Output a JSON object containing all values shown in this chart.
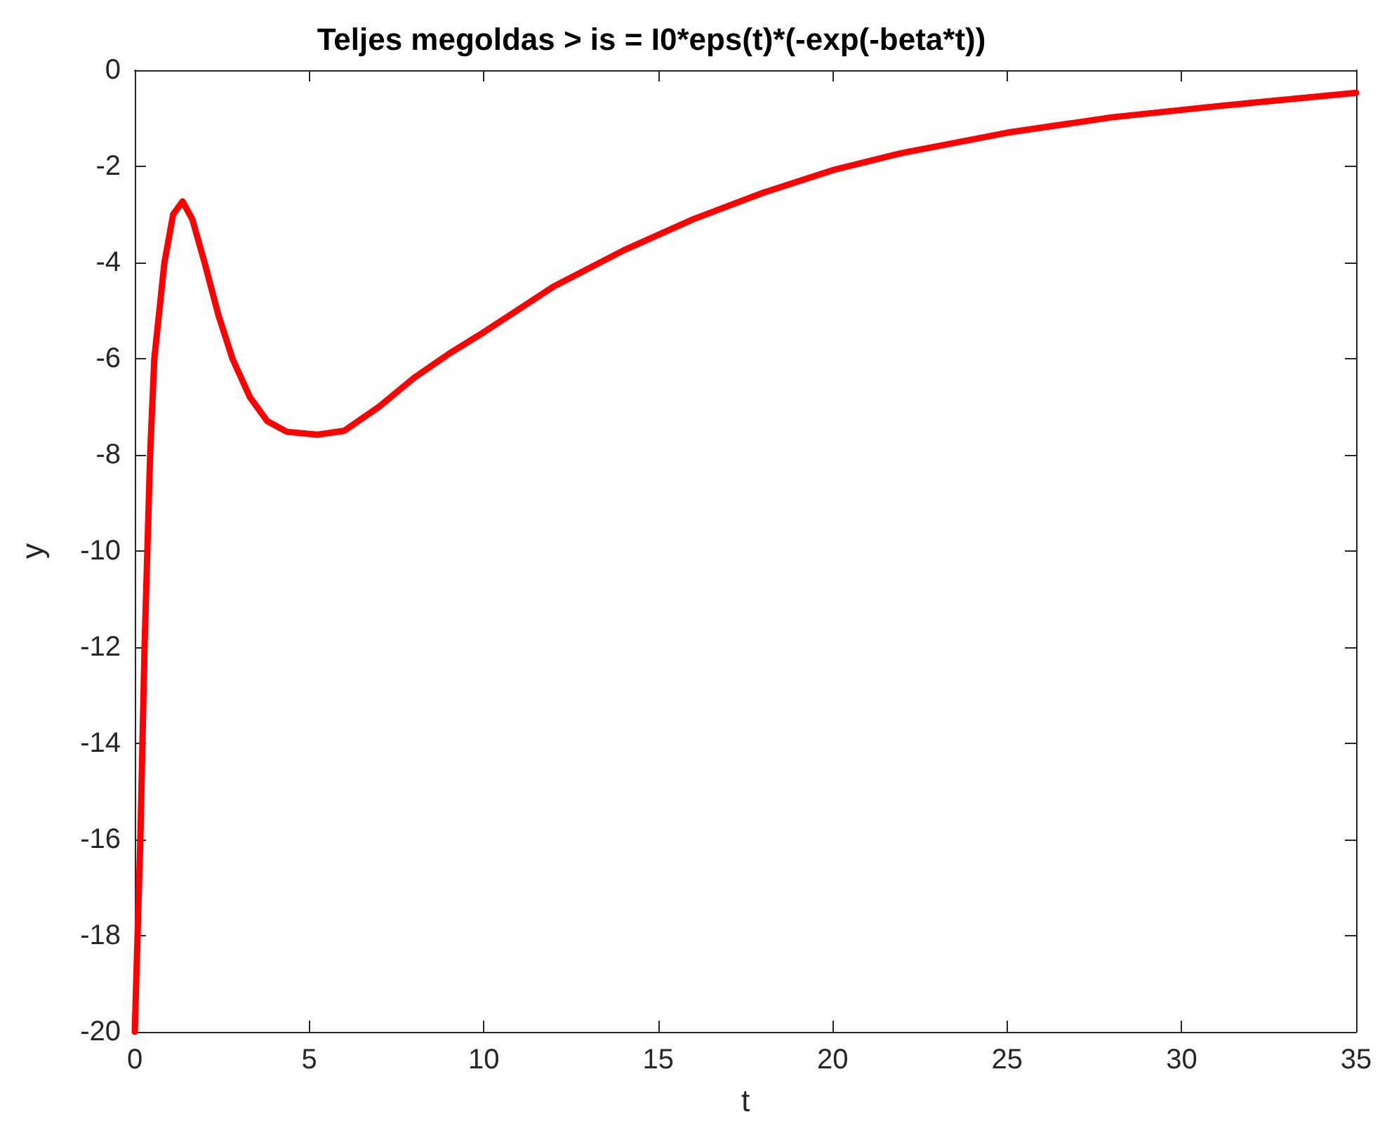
{
  "chart_data": {
    "type": "line",
    "title": "Teljes megoldas > is = I0*eps(t)*(-exp(-beta*t))",
    "xlabel": "t",
    "ylabel": "y",
    "series": [
      {
        "color": "#ff0000",
        "x": [
          0,
          0.16,
          0.28,
          0.44,
          0.56,
          0.85,
          1.1,
          1.37,
          1.65,
          2.0,
          2.4,
          2.8,
          3.3,
          3.8,
          4.36,
          5.23,
          6,
          7,
          8,
          9,
          10,
          12,
          14,
          16,
          18,
          20,
          22,
          25,
          28,
          31,
          35
        ],
        "values": [
          -20,
          -16,
          -12,
          -8,
          -6,
          -4,
          -3.0,
          -2.73,
          -3.1,
          -4,
          -5.1,
          -6,
          -6.8,
          -7.3,
          -7.52,
          -7.58,
          -7.5,
          -7.0,
          -6.4,
          -5.9,
          -5.45,
          -4.5,
          -3.75,
          -3.1,
          -2.55,
          -2.08,
          -1.72,
          -1.3,
          -0.98,
          -0.75,
          -0.47
        ]
      }
    ],
    "xlim": [
      0,
      35
    ],
    "xticks": [
      0,
      5,
      10,
      15,
      20,
      25,
      30,
      35
    ],
    "ylim": [
      -20,
      0
    ],
    "yticks": [
      -20,
      -18,
      -16,
      -14,
      -12,
      -10,
      -8,
      -6,
      -4,
      -2,
      0
    ],
    "grid": false,
    "marker": "none",
    "line_style": "solid"
  }
}
